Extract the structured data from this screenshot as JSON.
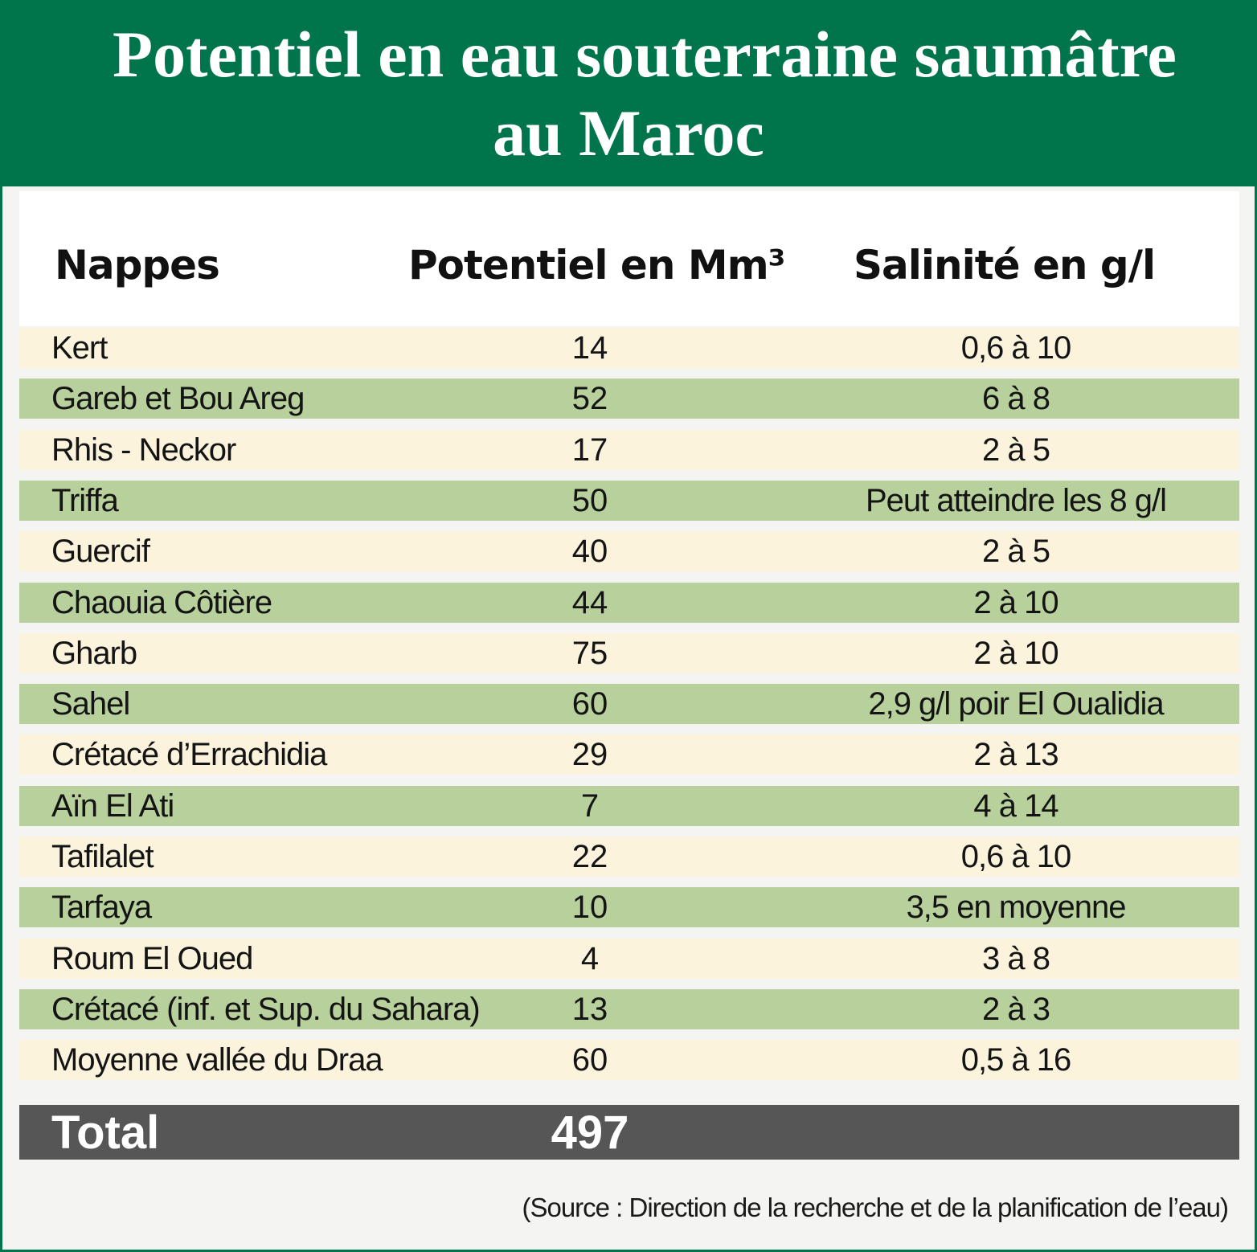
{
  "title": {
    "line1": "Potentiel en eau souterraine saumâtre",
    "line2": "au Maroc"
  },
  "colors": {
    "title_bg": "#00754b",
    "row_light": "#fbf3dc",
    "row_green": "#b7d09c",
    "total_bg": "#565656"
  },
  "chart_data": {
    "type": "table",
    "columns": [
      "Nappes",
      "Potentiel en Mm³",
      "Salinité en g/l"
    ],
    "rows": [
      {
        "name": "Kert",
        "potentiel": "14",
        "salinite": "0,6 à 10"
      },
      {
        "name": "Gareb et Bou Areg",
        "potentiel": "52",
        "salinite": "6 à 8"
      },
      {
        "name": "Rhis - Neckor",
        "potentiel": "17",
        "salinite": "2 à 5"
      },
      {
        "name": "Triffa",
        "potentiel": "50",
        "salinite": "Peut atteindre les 8 g/l"
      },
      {
        "name": "Guercif",
        "potentiel": "40",
        "salinite": "2 à 5"
      },
      {
        "name": "Chaouia Côtière",
        "potentiel": "44",
        "salinite": "2 à 10"
      },
      {
        "name": "Gharb",
        "potentiel": "75",
        "salinite": "2 à 10"
      },
      {
        "name": "Sahel",
        "potentiel": "60",
        "salinite": "2,9 g/l poir El Oualidia"
      },
      {
        "name": "Crétacé d’Errachidia",
        "potentiel": "29",
        "salinite": "2 à 13"
      },
      {
        "name": "Aïn El Ati",
        "potentiel": "7",
        "salinite": "4 à 14"
      },
      {
        "name": "Tafilalet",
        "potentiel": "22",
        "salinite": "0,6 à 10"
      },
      {
        "name": "Tarfaya",
        "potentiel": "10",
        "salinite": "3,5 en moyenne"
      },
      {
        "name": "Roum El Oued",
        "potentiel": "4",
        "salinite": "3 à 8"
      },
      {
        "name": "Crétacé (inf. et Sup. du Sahara)",
        "potentiel": "13",
        "salinite": "2 à 3"
      },
      {
        "name": "Moyenne vallée du Draa",
        "potentiel": "60",
        "salinite": "0,5 à 16"
      }
    ],
    "total": {
      "label": "Total",
      "value": "497"
    }
  },
  "source": "(Source : Direction de la recherche et de la planification de l’eau)"
}
